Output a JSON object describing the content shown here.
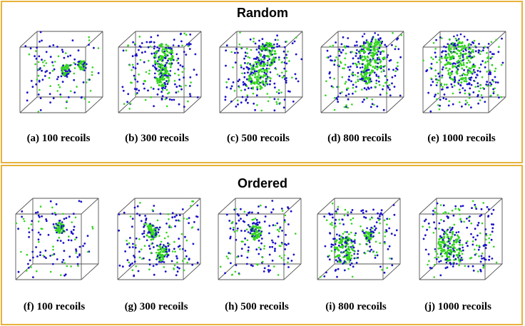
{
  "colors": {
    "border": "#e8b23a",
    "vacancy": "#1a10c8",
    "interstitial": "#33d41e",
    "cube_edge": "#555555"
  },
  "sections": [
    {
      "title": "Random",
      "panels": [
        {
          "caption": "(a) 100 recoils"
        },
        {
          "caption": "(b) 300 recoils"
        },
        {
          "caption": "(c) 500 recoils"
        },
        {
          "caption": "(d) 800 recoils"
        },
        {
          "caption": "(e) 1000 recoils"
        }
      ]
    },
    {
      "title": "Ordered",
      "panels": [
        {
          "caption": "(f)  100 recoils"
        },
        {
          "caption": "(g) 300 recoils"
        },
        {
          "caption": "(h) 500 recoils"
        },
        {
          "caption": "(i)  800 recoils"
        },
        {
          "caption": "(j)  1000 recoils"
        }
      ]
    }
  ]
}
